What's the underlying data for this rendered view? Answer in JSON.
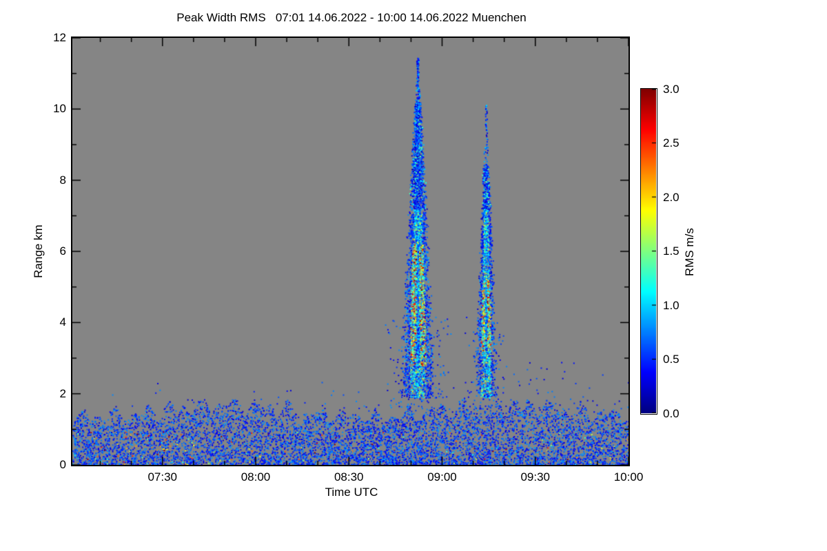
{
  "chart_data": {
    "type": "heatmap",
    "title": "Peak Width RMS   07:01 14.06.2022 - 10:00 14.06.2022 Muenchen",
    "xlabel": "Time UTC",
    "ylabel": "Range km",
    "time_start": "07:01",
    "time_end": "10:00",
    "date": "14.06.2022",
    "station": "Muenchen",
    "x_start_min": 421,
    "x_end_min": 600,
    "x_ticks": [
      {
        "label": "07:30",
        "minute": 450
      },
      {
        "label": "08:00",
        "minute": 480
      },
      {
        "label": "08:30",
        "minute": 510
      },
      {
        "label": "09:00",
        "minute": 540
      },
      {
        "label": "09:30",
        "minute": 570
      },
      {
        "label": "10:00",
        "minute": 600
      }
    ],
    "x_minor_step_min": 10,
    "ylim": [
      0,
      12
    ],
    "y_ticks": [
      0,
      2,
      4,
      6,
      8,
      10,
      12
    ],
    "y_minor_step": 1,
    "value_range": [
      0.0,
      3.0
    ],
    "colorbar": {
      "label": "RMS m/s",
      "ticks": [
        "0.0",
        "0.5",
        "1.0",
        "1.5",
        "2.0",
        "2.5",
        "3.0"
      ],
      "colormap": "jet"
    },
    "plot_bg": "#858585",
    "axis_color": "#000000",
    "seed": 7,
    "features": {
      "boundary_layer": {
        "description": "Dense speckle of low RMS returns (mostly 0.25-0.9 m/s, blue) from 0 to ~1.3-1.9 km across the whole period, with occasional high-RMS (1-3 m/s) colored specks below ~1 km, mostly before 08:00",
        "top_km_base": 1.25,
        "top_km_var": 0.6,
        "points_per_min": 44,
        "high_value_prob": 0.05
      },
      "scatter_above": {
        "description": "Sparse blue specks between the layer top and ~2.9 km, denser after 09:20",
        "base_prob": 0.1,
        "mid_prob": 0.22,
        "mid_range_min": [
          500,
          556
        ],
        "late_prob": 0.4,
        "late_start_min": 556
      },
      "plumes": [
        {
          "description": "Tall narrow convective/precipitation plume ~08:47-08:58 reaching ~11.3 km; hot core (1.5-3 m/s yellow/orange/red) between ~2.8 and 6.2 km, blue edges and blue/dark-blue top",
          "center_min": 532,
          "base_km": 1.9,
          "half_width_min": 5.2,
          "dense_top_km": 10.2,
          "max_top_km": 11.3,
          "points": 4600,
          "core_hot_km": [
            2.8,
            6.2
          ]
        },
        {
          "description": "Second narrower plume ~09:10-09:18 reaching ~10 km (sparse cluster near 10 km); hot core between ~3.2 and 5.2 km",
          "center_min": 554,
          "base_km": 1.9,
          "half_width_min": 3.4,
          "dense_top_km": 8.4,
          "max_top_km": 10.1,
          "points": 2200,
          "core_hot_km": [
            3.2,
            5.2
          ]
        }
      ]
    }
  }
}
